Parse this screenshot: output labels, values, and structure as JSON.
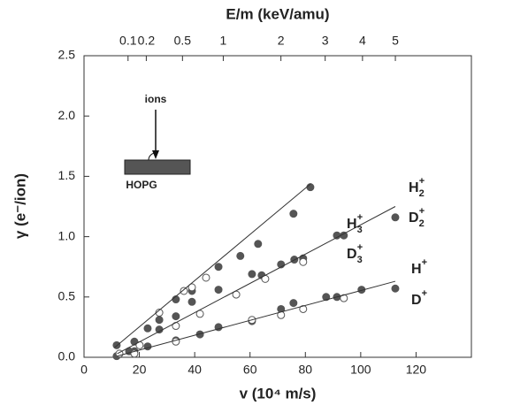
{
  "chart_data": {
    "type": "scatter",
    "x_label": "v (10⁴ m/s)",
    "y_label": "γ (e⁻/ion)",
    "x2_label": "E/m (keV/amu)",
    "xlim": [
      0,
      140
    ],
    "xticks": [
      0,
      20,
      40,
      60,
      80,
      100,
      120
    ],
    "ylim": [
      0,
      2.5
    ],
    "yticks": [
      {
        "value": 0,
        "label": "0.0"
      },
      {
        "value": 0.5,
        "label": "0.5"
      },
      {
        "value": 1,
        "label": "1.0"
      },
      {
        "value": 1.5,
        "label": "1.5"
      },
      {
        "value": 2,
        "label": "2.0"
      },
      {
        "value": 2.5,
        "label": "2.5"
      }
    ],
    "x2scale": "sqrt",
    "x2lim": [
      0,
      7.74
    ],
    "x2ticks": [
      0.1,
      0.2,
      0.5,
      1,
      2,
      3,
      4,
      5
    ],
    "series": [
      {
        "style": "filled",
        "color": "#555555",
        "x": [
          11.8,
          18.2,
          23,
          27.2,
          33.2,
          39,
          48.6,
          56.5,
          62.9,
          75.7,
          81.8
        ],
        "values": [
          0.1,
          0.13,
          0.24,
          0.31,
          0.48,
          0.55,
          0.75,
          0.84,
          0.94,
          1.19,
          1.41
        ]
      },
      {
        "style": "open",
        "color": "#555555",
        "x": [
          27.2,
          36.1,
          39,
          44.1
        ],
        "values": [
          0.37,
          0.55,
          0.58,
          0.66
        ]
      },
      {
        "style": "filled",
        "color": "#555555",
        "x": [
          18.2,
          27.2,
          33.2,
          39,
          48.6,
          60.7,
          64.2,
          71.2,
          76,
          79.2,
          91.4,
          93.9,
          112.5
        ],
        "values": [
          0.05,
          0.23,
          0.34,
          0.46,
          0.56,
          0.69,
          0.68,
          0.77,
          0.81,
          0.82,
          1.01,
          1.01,
          1.16
        ]
      },
      {
        "style": "open",
        "color": "#555555",
        "x": [
          20.1,
          33.2,
          41.9,
          55,
          65.5,
          79.2
        ],
        "values": [
          0.1,
          0.26,
          0.36,
          0.52,
          0.65,
          0.79
        ]
      },
      {
        "style": "filled",
        "color": "#555555",
        "x": [
          11.8,
          16.3,
          23,
          33.2,
          41.9,
          48.6,
          60.7,
          71.2,
          75.7,
          87.5,
          91.4,
          100.3,
          112.5
        ],
        "values": [
          0.01,
          0.05,
          0.09,
          0.14,
          0.19,
          0.25,
          0.3,
          0.4,
          0.45,
          0.5,
          0.5,
          0.56,
          0.57
        ]
      },
      {
        "style": "open",
        "color": "#555555",
        "x": [
          12.8,
          18.2,
          33.2,
          60.7,
          71.2,
          79.2,
          93.9
        ],
        "values": [
          0.03,
          0.03,
          0.13,
          0.31,
          0.35,
          0.4,
          0.49
        ]
      },
      {
        "style": "line",
        "color": "#333333",
        "x": [
          11,
          82
        ],
        "values": [
          0.08,
          1.44
        ]
      },
      {
        "style": "line",
        "color": "#333333",
        "x": [
          12,
          112.5
        ],
        "values": [
          0.03,
          1.25
        ]
      },
      {
        "style": "line",
        "color": "#333333",
        "x": [
          12,
          112.5
        ],
        "values": [
          0.01,
          0.63
        ]
      }
    ],
    "annotations": [
      {
        "text": "H",
        "sub": "3",
        "sup": "+"
      },
      {
        "text": "D",
        "sub": "3",
        "sup": "+"
      },
      {
        "text": "H",
        "sub": "2",
        "sup": "+"
      },
      {
        "text": "D",
        "sub": "2",
        "sup": "+"
      },
      {
        "text": "H",
        "sup": "+"
      },
      {
        "text": "D",
        "sup": "+"
      }
    ],
    "inset": {
      "arrow_label": "ions",
      "target_label": "HOPG"
    }
  }
}
